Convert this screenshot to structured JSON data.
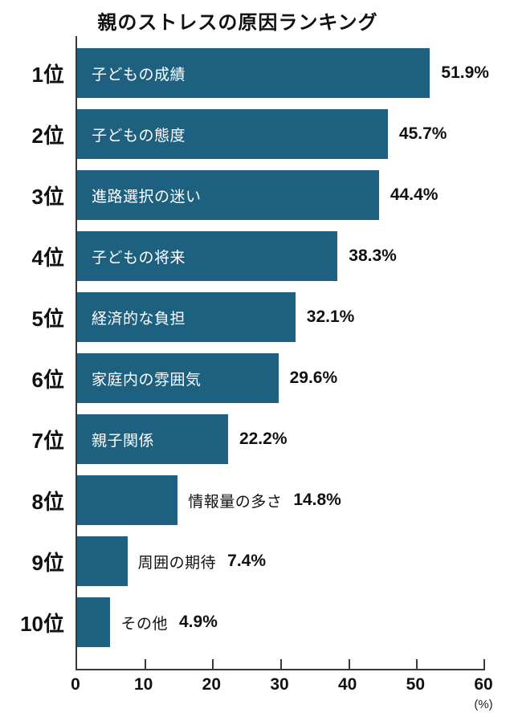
{
  "chart_data": {
    "type": "bar",
    "orientation": "horizontal",
    "title": "親のストレスの原因ランキング",
    "xlim": [
      0,
      60
    ],
    "xticks": [
      "0",
      "10",
      "20",
      "30",
      "40",
      "50",
      "60"
    ],
    "x_unit": "(%)",
    "bar_color": "#1e6080",
    "grid": false,
    "rows": [
      {
        "rank": "1位",
        "category": "子どもの成績",
        "value": 51.9,
        "value_label": "51.9%",
        "label_position": "inside"
      },
      {
        "rank": "2位",
        "category": "子どもの態度",
        "value": 45.7,
        "value_label": "45.7%",
        "label_position": "inside"
      },
      {
        "rank": "3位",
        "category": "進路選択の迷い",
        "value": 44.4,
        "value_label": "44.4%",
        "label_position": "inside"
      },
      {
        "rank": "4位",
        "category": "子どもの将来",
        "value": 38.3,
        "value_label": "38.3%",
        "label_position": "inside"
      },
      {
        "rank": "5位",
        "category": "経済的な負担",
        "value": 32.1,
        "value_label": "32.1%",
        "label_position": "inside"
      },
      {
        "rank": "6位",
        "category": "家庭内の雰囲気",
        "value": 29.6,
        "value_label": "29.6%",
        "label_position": "inside"
      },
      {
        "rank": "7位",
        "category": "親子関係",
        "value": 22.2,
        "value_label": "22.2%",
        "label_position": "inside"
      },
      {
        "rank": "8位",
        "category": "情報量の多さ",
        "value": 14.8,
        "value_label": "14.8%",
        "label_position": "outside"
      },
      {
        "rank": "9位",
        "category": "周囲の期待",
        "value": 7.4,
        "value_label": "7.4%",
        "label_position": "outside"
      },
      {
        "rank": "10位",
        "category": "その他",
        "value": 4.9,
        "value_label": "4.9%",
        "label_position": "outside"
      }
    ]
  }
}
